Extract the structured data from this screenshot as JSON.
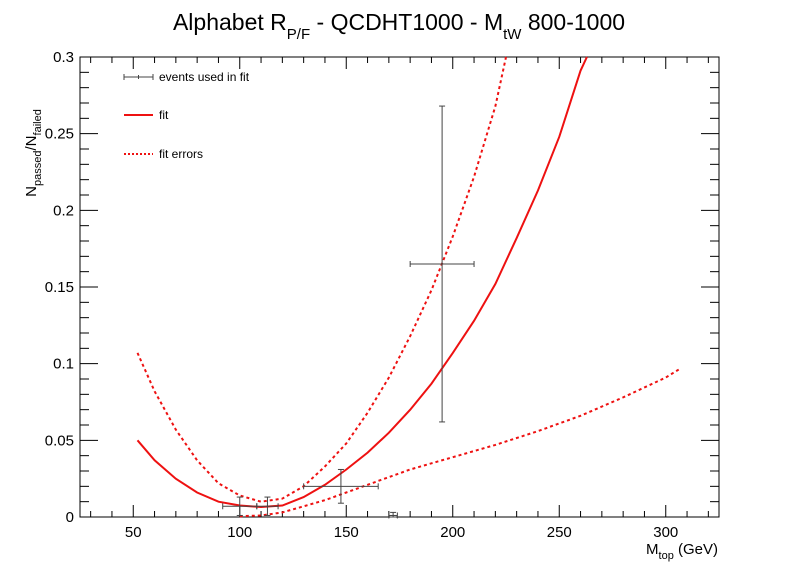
{
  "chart_data": {
    "type": "line",
    "title": {
      "main": "Alphabet R",
      "main_sub": "P/F",
      "middle": " - QCDHT1000 - M",
      "middle_sub": "tW",
      "tail": " 800-1000"
    },
    "xlabel": {
      "main": "M",
      "sub": "top",
      "tail": " (GeV)"
    },
    "ylabel": {
      "main": "N",
      "sub1": "passed",
      "slash": "/N",
      "sub2": "failed"
    },
    "xlim": [
      25,
      325
    ],
    "ylim": [
      0,
      0.3
    ],
    "x_ticks": [
      "50",
      "100",
      "150",
      "200",
      "250",
      "300"
    ],
    "y_ticks": [
      "0",
      "0.05",
      "0.1",
      "0.15",
      "0.2",
      "0.25",
      "0.3"
    ],
    "legend_position": "top-left",
    "legend": [
      "events used in fit",
      "fit",
      "fit errors"
    ],
    "colors": {
      "fit": "#ee1111",
      "errors": "#ee1111",
      "points": "#444444",
      "axis": "#000000"
    },
    "series": [
      {
        "name": "events used in fit",
        "style": "errorbar",
        "points": [
          {
            "x": 100,
            "y": 0.007,
            "xerr": 8,
            "yerr": 0.006
          },
          {
            "x": 113,
            "y": 0.007,
            "xerr": 5,
            "yerr": 0.006
          },
          {
            "x": 147.5,
            "y": 0.02,
            "xerr": 17.5,
            "yerr": 0.011
          },
          {
            "x": 195,
            "y": 0.165,
            "xerr": 15,
            "yerr": 0.103
          },
          {
            "x": 172,
            "y": 0.001,
            "xerr": 2,
            "yerr": 0.002
          }
        ]
      },
      {
        "name": "fit",
        "style": "solid",
        "points": [
          [
            52,
            0.05
          ],
          [
            60,
            0.037
          ],
          [
            70,
            0.025
          ],
          [
            80,
            0.016
          ],
          [
            90,
            0.01
          ],
          [
            100,
            0.0075
          ],
          [
            110,
            0.0065
          ],
          [
            120,
            0.0075
          ],
          [
            130,
            0.013
          ],
          [
            140,
            0.021
          ],
          [
            150,
            0.031
          ],
          [
            160,
            0.042
          ],
          [
            170,
            0.055
          ],
          [
            180,
            0.07
          ],
          [
            190,
            0.087
          ],
          [
            200,
            0.107
          ],
          [
            210,
            0.128
          ],
          [
            220,
            0.152
          ],
          [
            230,
            0.182
          ],
          [
            240,
            0.213
          ],
          [
            250,
            0.248
          ],
          [
            260,
            0.291
          ],
          [
            263,
            0.3
          ]
        ]
      },
      {
        "name": "fit errors",
        "style": "dotted",
        "points": [
          [
            52,
            0.107
          ],
          [
            60,
            0.082
          ],
          [
            70,
            0.057
          ],
          [
            80,
            0.037
          ],
          [
            90,
            0.022
          ],
          [
            100,
            0.014
          ],
          [
            110,
            0.01
          ],
          [
            120,
            0.012
          ],
          [
            130,
            0.02
          ],
          [
            140,
            0.033
          ],
          [
            150,
            0.048
          ],
          [
            160,
            0.068
          ],
          [
            170,
            0.091
          ],
          [
            180,
            0.118
          ],
          [
            190,
            0.148
          ],
          [
            200,
            0.183
          ],
          [
            210,
            0.222
          ],
          [
            220,
            0.268
          ],
          [
            225,
            0.3
          ]
        ]
      },
      {
        "name": "fit errors",
        "style": "dotted",
        "points": [
          [
            100,
            0.0005
          ],
          [
            110,
            0.001
          ],
          [
            120,
            0.003
          ],
          [
            130,
            0.007
          ],
          [
            140,
            0.011
          ],
          [
            150,
            0.016
          ],
          [
            160,
            0.021
          ],
          [
            170,
            0.026
          ],
          [
            180,
            0.031
          ],
          [
            190,
            0.035
          ],
          [
            200,
            0.039
          ],
          [
            220,
            0.047
          ],
          [
            240,
            0.056
          ],
          [
            260,
            0.066
          ],
          [
            280,
            0.078
          ],
          [
            300,
            0.091
          ],
          [
            307,
            0.097
          ]
        ]
      }
    ]
  }
}
